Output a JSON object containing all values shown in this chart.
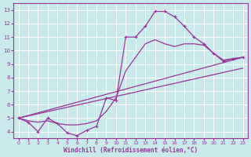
{
  "xlabel": "Windchill (Refroidissement éolien,°C)",
  "xlim": [
    -0.5,
    23.5
  ],
  "ylim": [
    3.5,
    13.5
  ],
  "xticks": [
    0,
    1,
    2,
    3,
    4,
    5,
    6,
    7,
    8,
    9,
    10,
    11,
    12,
    13,
    14,
    15,
    16,
    17,
    18,
    19,
    20,
    21,
    22,
    23
  ],
  "yticks": [
    4,
    5,
    6,
    7,
    8,
    9,
    10,
    11,
    12,
    13
  ],
  "bg_color": "#c8eaea",
  "line_color": "#993399",
  "grid_color": "#ffffff",
  "lines": [
    {
      "x": [
        0,
        1,
        2,
        3,
        4,
        5,
        6,
        7,
        8,
        9,
        10,
        11,
        12,
        13,
        14,
        15,
        16,
        17,
        18,
        19,
        20,
        21,
        22,
        23
      ],
      "y": [
        5.0,
        4.7,
        4.0,
        5.0,
        4.6,
        3.9,
        3.7,
        4.1,
        4.4,
        6.5,
        6.3,
        11.0,
        11.0,
        11.8,
        12.9,
        12.9,
        12.5,
        11.8,
        11.0,
        10.5,
        9.8,
        9.2,
        9.4,
        9.5
      ],
      "marker": true
    },
    {
      "x": [
        0,
        1,
        2,
        3,
        4,
        5,
        6,
        7,
        8,
        9,
        10,
        11,
        12,
        13,
        14,
        15,
        16,
        17,
        18,
        19,
        20,
        21,
        22,
        23
      ],
      "y": [
        5.0,
        4.8,
        4.7,
        4.8,
        4.6,
        4.5,
        4.5,
        4.6,
        4.8,
        5.5,
        6.5,
        8.5,
        9.5,
        10.5,
        10.8,
        10.5,
        10.3,
        10.5,
        10.5,
        10.4,
        9.8,
        9.3,
        9.4,
        9.5
      ],
      "marker": false
    },
    {
      "x": [
        0,
        23
      ],
      "y": [
        5.0,
        8.7
      ],
      "marker": false
    },
    {
      "x": [
        0,
        23
      ],
      "y": [
        5.0,
        9.5
      ],
      "marker": false
    }
  ]
}
